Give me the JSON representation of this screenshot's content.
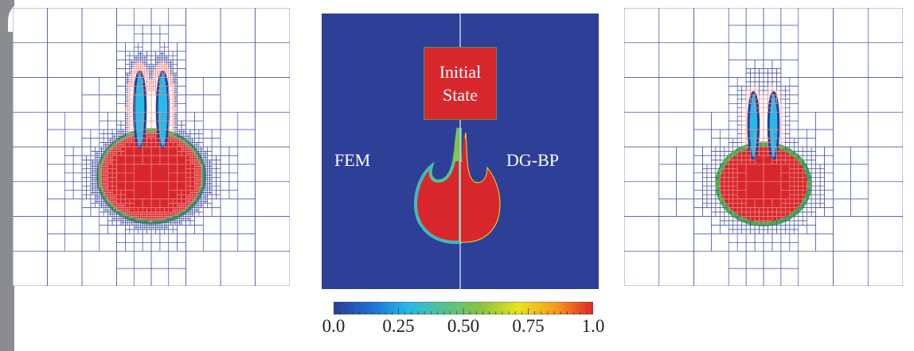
{
  "figure": {
    "middle_panel": {
      "left_label": "FEM",
      "right_label": "DG-BP",
      "inset_label_line1": "Initial",
      "inset_label_line2": "State"
    },
    "colorbar": {
      "min": 0.0,
      "max": 1.0,
      "ticks": [
        "0.0",
        "0.25",
        "0.50",
        "0.75",
        "1.0"
      ],
      "colors": [
        "#2b3d96",
        "#1f6fd1",
        "#27b9e8",
        "#55c38c",
        "#8bc53f",
        "#e8e51e",
        "#f39a1f",
        "#e0262a"
      ]
    },
    "colors": {
      "background_field": "#2e3f98",
      "interior": "#d8272c",
      "mesh_line": "#3f4d9e",
      "mesh_line_interior": "#f28b8b"
    }
  }
}
